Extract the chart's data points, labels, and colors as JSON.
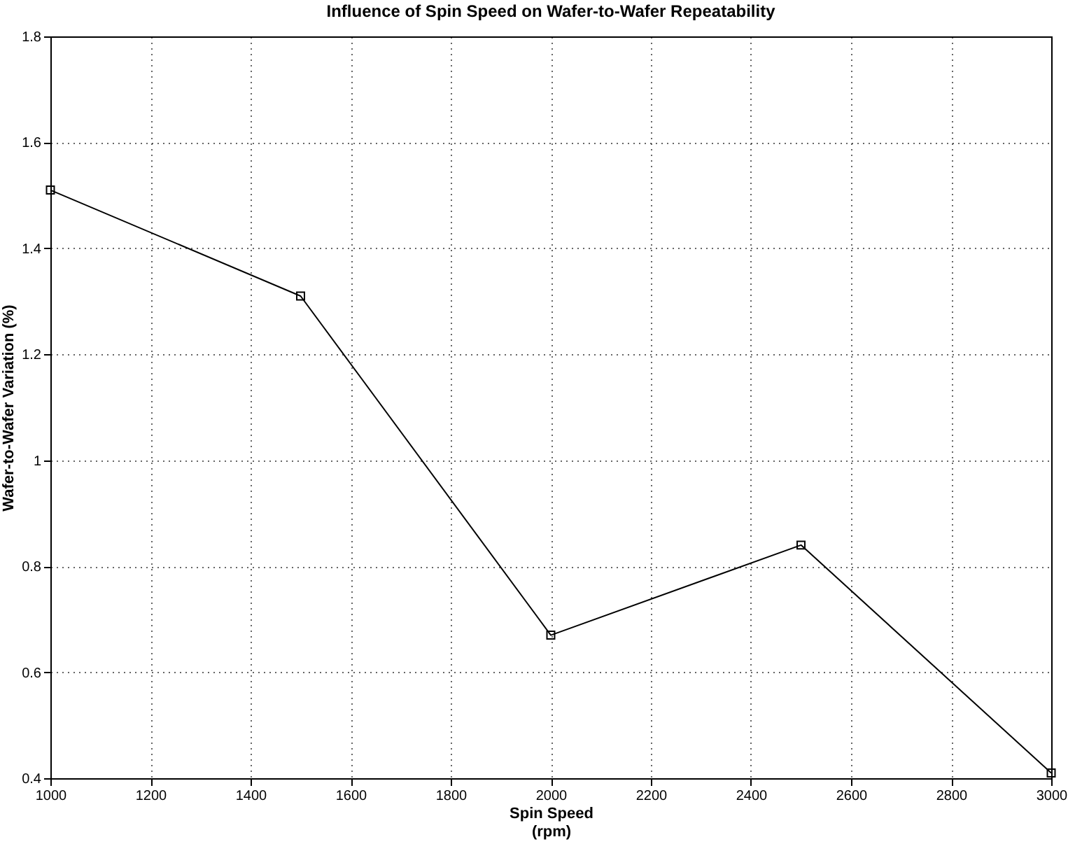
{
  "chart_data": {
    "type": "line",
    "title": "Influence of Spin Speed on Wafer-to-Wafer Repeatability",
    "xlabel": "Spin Speed\n(rpm)",
    "ylabel": "Wafer-to-Wafer Variation (%)",
    "x": [
      1000,
      1500,
      2000,
      2500,
      3000
    ],
    "series": [
      {
        "color": "#000000",
        "values": [
          1.51,
          1.31,
          0.67,
          0.84,
          0.41
        ]
      }
    ],
    "xlim": [
      1000,
      3000
    ],
    "xticks": [
      1000,
      1200,
      1400,
      1600,
      1800,
      2000,
      2200,
      2400,
      2600,
      2800,
      3000
    ],
    "ylim": [
      0.4,
      1.8
    ],
    "yticks": [
      0.4,
      0.6,
      0.8,
      1,
      1.2,
      1.4,
      1.6,
      1.8
    ],
    "grid": true,
    "marker": "square",
    "line_style": "solid"
  }
}
